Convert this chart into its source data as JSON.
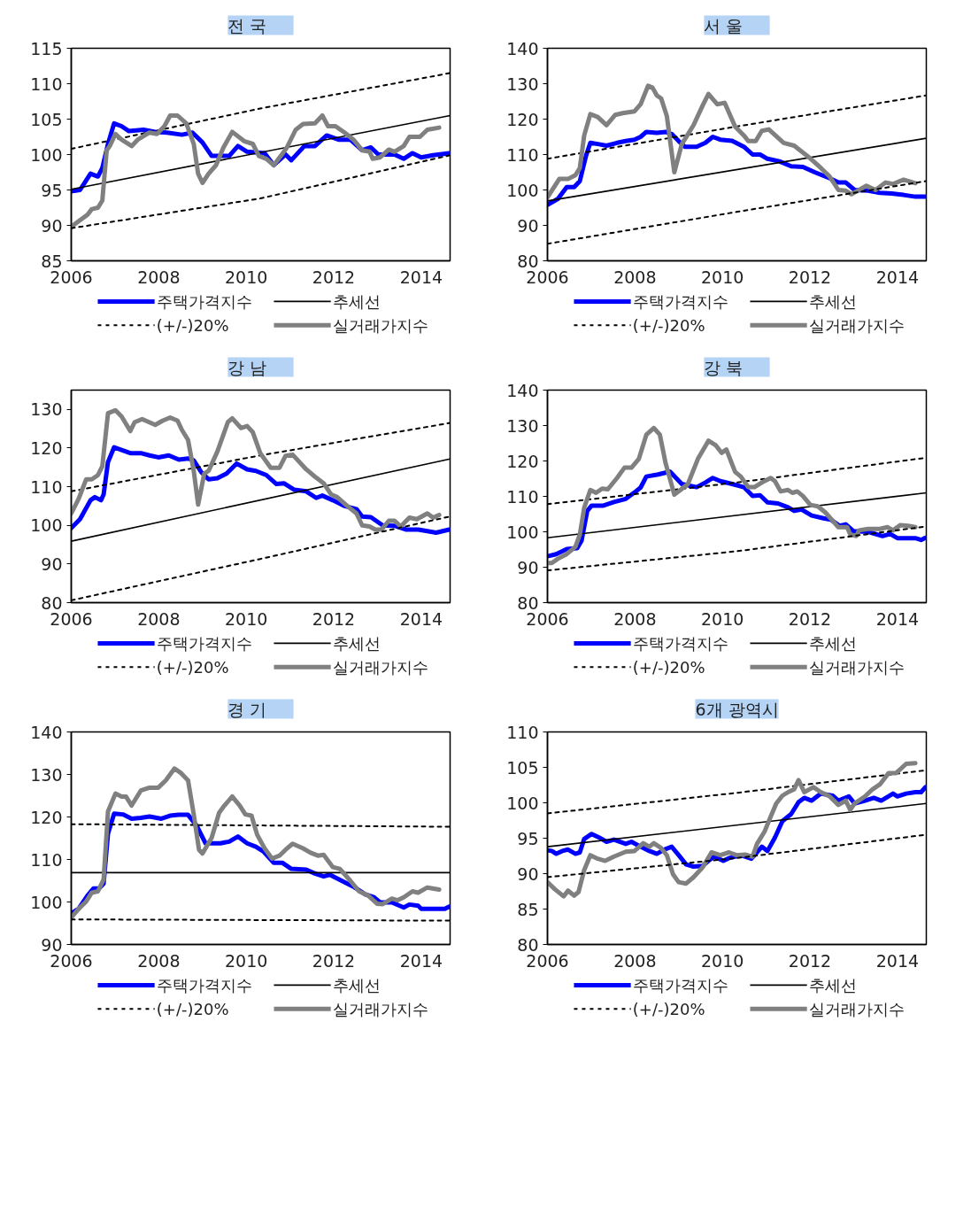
{
  "chart_data": [
    {
      "type": "line",
      "title": "전      국",
      "legend": "bottom",
      "xlim": [
        2006,
        2014.66
      ],
      "xticks": [
        2006,
        2008,
        2010,
        2012,
        2014
      ],
      "ylim": [
        85,
        115
      ],
      "yticks": [
        85,
        90,
        95,
        100,
        105,
        110,
        115
      ],
      "series": [
        {
          "name": "주택가격지수",
          "color": "#0000ff",
          "line_style": "solid",
          "x": [
            2006.0,
            2006.2,
            2006.44,
            2006.61,
            2006.71,
            2006.84,
            2006.98,
            2007.15,
            2007.32,
            2007.65,
            2007.92,
            2008.19,
            2008.53,
            2008.77,
            2009.0,
            2009.21,
            2009.48,
            2009.61,
            2009.81,
            2010.02,
            2010.42,
            2010.63,
            2010.9,
            2011.03,
            2011.33,
            2011.57,
            2011.84,
            2012.11,
            2012.38,
            2012.65,
            2012.85,
            2013.02,
            2013.39,
            2013.6,
            2013.8,
            2014.0,
            2014.27,
            2014.64
          ],
          "values": [
            94.8,
            95.0,
            97.3,
            96.9,
            98.1,
            101.5,
            104.4,
            104.0,
            103.3,
            103.5,
            103.2,
            103.1,
            102.8,
            103.1,
            101.7,
            99.8,
            99.8,
            99.8,
            101.2,
            100.4,
            100.2,
            98.5,
            100.0,
            99.2,
            101.2,
            101.2,
            102.7,
            102.1,
            102.1,
            100.6,
            101.0,
            100.0,
            100.0,
            99.4,
            100.2,
            99.6,
            99.9,
            100.2
          ]
        },
        {
          "name": "추세선",
          "color": "#000000",
          "line_style": "solid",
          "x": [
            2006.0,
            2014.66
          ],
          "values": [
            95.1,
            105.5
          ]
        },
        {
          "name": "(+/-)20%",
          "color": "#000000",
          "line_style": "dashed",
          "x": [
            2006.0,
            2010.32,
            2014.66
          ],
          "values": [
            100.8,
            106.5,
            111.5
          ]
        },
        {
          "name": "실거래가지수",
          "color": "#808080",
          "line_style": "solid",
          "x": [
            2006.0,
            2006.17,
            2006.37,
            2006.47,
            2006.61,
            2006.71,
            2006.81,
            2006.88,
            2007.01,
            2007.15,
            2007.38,
            2007.52,
            2007.79,
            2007.96,
            2008.13,
            2008.26,
            2008.43,
            2008.63,
            2008.8,
            2008.9,
            2009.0,
            2009.14,
            2009.31,
            2009.48,
            2009.68,
            2009.95,
            2010.15,
            2010.29,
            2010.46,
            2010.63,
            2010.79,
            2010.93,
            2011.13,
            2011.3,
            2011.57,
            2011.74,
            2011.87,
            2012.04,
            2012.25,
            2012.45,
            2012.65,
            2012.82,
            2012.89,
            2013.06,
            2013.26,
            2013.39,
            2013.6,
            2013.73,
            2013.97,
            2014.14,
            2014.41
          ],
          "values": [
            89.8,
            90.6,
            91.5,
            92.3,
            92.5,
            93.5,
            100.6,
            101.2,
            102.9,
            102.1,
            101.2,
            102.1,
            103.1,
            102.9,
            104.0,
            105.5,
            105.5,
            104.4,
            101.5,
            97.3,
            96.0,
            97.3,
            98.5,
            101.0,
            103.2,
            101.9,
            101.5,
            99.8,
            99.4,
            98.5,
            99.8,
            101.0,
            103.5,
            104.3,
            104.4,
            105.5,
            104.0,
            104.0,
            103.1,
            102.1,
            100.6,
            100.4,
            99.4,
            99.6,
            100.7,
            100.4,
            101.2,
            102.5,
            102.5,
            103.5,
            103.8
          ]
        },
        {
          "color": "#000000",
          "line_style": "dashed",
          "x": [
            2006.0,
            2010.32,
            2014.66
          ],
          "values": [
            89.6,
            93.8,
            99.9
          ]
        }
      ]
    },
    {
      "type": "line",
      "title": "서      울",
      "legend": "bottom",
      "xlim": [
        2006,
        2014.66
      ],
      "xticks": [
        2006,
        2008,
        2010,
        2012,
        2014
      ],
      "ylim": [
        80,
        140
      ],
      "yticks": [
        80,
        90,
        100,
        110,
        120,
        130,
        140
      ],
      "series": [
        {
          "name": "주택가격지수",
          "color": "#0000ff",
          "line_style": "solid",
          "x": [
            2006.0,
            2006.24,
            2006.44,
            2006.61,
            2006.74,
            2006.88,
            2006.98,
            2007.18,
            2007.35,
            2007.59,
            2007.79,
            2007.99,
            2008.13,
            2008.26,
            2008.5,
            2008.7,
            2008.84,
            2009.0,
            2009.14,
            2009.41,
            2009.61,
            2009.78,
            2009.95,
            2010.22,
            2010.49,
            2010.69,
            2010.86,
            2011.03,
            2011.3,
            2011.57,
            2011.84,
            2012.11,
            2012.45,
            2012.65,
            2012.82,
            2013.02,
            2013.33,
            2013.6,
            2013.87,
            2014.14,
            2014.41,
            2014.64
          ],
          "values": [
            95.8,
            97.5,
            100.8,
            100.8,
            102.5,
            109.6,
            113.3,
            112.9,
            112.5,
            113.3,
            113.8,
            114.2,
            115.0,
            116.4,
            116.1,
            116.4,
            115.8,
            113.8,
            112.2,
            112.2,
            113.3,
            115.0,
            114.2,
            113.9,
            112.2,
            110.0,
            110.0,
            108.8,
            108.1,
            106.7,
            106.5,
            105.0,
            103.3,
            102.1,
            102.1,
            100.0,
            99.8,
            99.2,
            99.0,
            98.6,
            98.1,
            98.1
          ]
        },
        {
          "name": "추세선",
          "color": "#000000",
          "line_style": "solid",
          "x": [
            2006.0,
            2014.66
          ],
          "values": [
            96.9,
            114.6
          ]
        },
        {
          "name": "(+/-)20%",
          "color": "#000000",
          "line_style": "dashed",
          "x": [
            2006.0,
            2010.32,
            2014.66
          ],
          "values": [
            108.8,
            117.9,
            126.7
          ]
        },
        {
          "name": "실거래가지수",
          "color": "#808080",
          "line_style": "solid",
          "x": [
            2006.0,
            2006.27,
            2006.47,
            2006.64,
            2006.74,
            2006.84,
            2006.98,
            2007.15,
            2007.35,
            2007.55,
            2007.72,
            2007.99,
            2008.13,
            2008.3,
            2008.4,
            2008.5,
            2008.6,
            2008.73,
            2008.9,
            2009.07,
            2009.34,
            2009.55,
            2009.68,
            2009.88,
            2010.05,
            2010.29,
            2010.49,
            2010.59,
            2010.76,
            2010.9,
            2011.06,
            2011.4,
            2011.64,
            2011.98,
            2012.25,
            2012.45,
            2012.65,
            2012.82,
            2012.95,
            2013.29,
            2013.5,
            2013.73,
            2013.9,
            2014.14,
            2014.41
          ],
          "values": [
            97.9,
            103.1,
            103.1,
            104.2,
            106.2,
            115.4,
            121.4,
            120.6,
            118.3,
            121.2,
            121.7,
            122.2,
            124.2,
            129.4,
            128.9,
            126.7,
            125.8,
            120.8,
            105.0,
            112.9,
            118.3,
            123.9,
            127.1,
            124.2,
            124.6,
            117.9,
            115.4,
            113.8,
            113.8,
            116.7,
            117.1,
            113.3,
            112.5,
            109.2,
            106.2,
            103.8,
            100.0,
            99.8,
            98.8,
            101.2,
            100.0,
            102.1,
            101.7,
            102.9,
            101.9
          ]
        },
        {
          "color": "#000000",
          "line_style": "dashed",
          "x": [
            2006.0,
            2010.32,
            2014.66
          ],
          "values": [
            84.8,
            93.8,
            102.5
          ]
        }
      ]
    },
    {
      "type": "line",
      "title": "강      남",
      "legend": "bottom",
      "xlim": [
        2006,
        2014.66
      ],
      "xticks": [
        2006,
        2008,
        2010,
        2012,
        2014
      ],
      "ylim": [
        80,
        135
      ],
      "yticks": [
        80,
        90,
        100,
        110,
        120,
        130
      ],
      "series": [
        {
          "name": "주택가격지수",
          "color": "#0000ff",
          "line_style": "solid",
          "x": [
            2006.0,
            2006.2,
            2006.44,
            2006.54,
            2006.68,
            2006.74,
            2006.84,
            2006.98,
            2007.15,
            2007.35,
            2007.59,
            2007.79,
            2007.99,
            2008.23,
            2008.46,
            2008.67,
            2008.8,
            2008.97,
            2009.14,
            2009.34,
            2009.55,
            2009.78,
            2010.02,
            2010.22,
            2010.46,
            2010.69,
            2010.86,
            2011.1,
            2011.37,
            2011.6,
            2011.74,
            2011.98,
            2012.25,
            2012.52,
            2012.65,
            2012.85,
            2013.12,
            2013.39,
            2013.66,
            2013.93,
            2014.14,
            2014.34,
            2014.64
          ],
          "values": [
            99.3,
            101.6,
            106.5,
            107.3,
            106.5,
            108.0,
            116.4,
            120.2,
            119.5,
            118.7,
            118.7,
            118.1,
            117.6,
            118.1,
            117.0,
            117.3,
            116.8,
            113.8,
            111.9,
            112.2,
            113.4,
            116.0,
            114.5,
            114.1,
            113.0,
            110.7,
            110.9,
            109.2,
            108.8,
            107.1,
            107.7,
            106.5,
            105.0,
            104.2,
            102.3,
            102.1,
            100.0,
            99.9,
            98.9,
            98.9,
            98.5,
            98.1,
            98.9
          ]
        },
        {
          "name": "추세선",
          "color": "#000000",
          "line_style": "solid",
          "x": [
            2006.0,
            2014.66
          ],
          "values": [
            95.9,
            117.2
          ]
        },
        {
          "name": "(+/-)20%",
          "color": "#000000",
          "line_style": "dashed",
          "x": [
            2006.0,
            2010.32,
            2014.66
          ],
          "values": [
            108.8,
            118.1,
            126.5
          ]
        },
        {
          "name": "실거래가지수",
          "color": "#808080",
          "line_style": "solid",
          "x": [
            2006.0,
            2006.17,
            2006.34,
            2006.47,
            2006.61,
            2006.71,
            2006.84,
            2007.01,
            2007.15,
            2007.35,
            2007.45,
            2007.62,
            2007.92,
            2008.09,
            2008.26,
            2008.43,
            2008.53,
            2008.67,
            2008.8,
            2008.9,
            2009.04,
            2009.14,
            2009.34,
            2009.58,
            2009.68,
            2009.88,
            2010.02,
            2010.15,
            2010.32,
            2010.56,
            2010.76,
            2010.9,
            2011.06,
            2011.37,
            2011.57,
            2011.77,
            2011.94,
            2012.08,
            2012.31,
            2012.52,
            2012.65,
            2012.82,
            2012.95,
            2013.09,
            2013.26,
            2013.39,
            2013.53,
            2013.73,
            2013.9,
            2014.14,
            2014.27,
            2014.41
          ],
          "values": [
            103.1,
            106.9,
            111.9,
            111.9,
            113.0,
            115.3,
            129.0,
            129.8,
            128.2,
            124.4,
            126.7,
            127.5,
            126.0,
            127.1,
            127.9,
            127.1,
            124.7,
            122.1,
            114.1,
            105.4,
            113.4,
            114.1,
            119.1,
            126.7,
            127.7,
            125.2,
            125.7,
            124.1,
            118.7,
            114.9,
            114.9,
            118.0,
            118.3,
            114.5,
            112.6,
            110.9,
            108.0,
            107.3,
            105.0,
            103.1,
            100.0,
            99.7,
            98.9,
            98.9,
            101.2,
            101.2,
            99.7,
            102.0,
            101.6,
            103.1,
            102.0,
            102.7
          ]
        },
        {
          "color": "#000000",
          "line_style": "dashed",
          "x": [
            2006.0,
            2010.32,
            2014.66
          ],
          "values": [
            80.6,
            91.3,
            102.3
          ]
        }
      ]
    },
    {
      "type": "line",
      "title": "강      북",
      "legend": "bottom",
      "xlim": [
        2006,
        2014.66
      ],
      "xticks": [
        2006,
        2008,
        2010,
        2012,
        2014
      ],
      "ylim": [
        80,
        140
      ],
      "yticks": [
        80,
        90,
        100,
        110,
        120,
        130,
        140
      ],
      "series": [
        {
          "name": "주택가격지수",
          "color": "#0000ff",
          "line_style": "solid",
          "x": [
            2006.0,
            2006.2,
            2006.44,
            2006.68,
            2006.78,
            2006.91,
            2007.01,
            2007.28,
            2007.52,
            2007.79,
            2007.99,
            2008.13,
            2008.26,
            2008.53,
            2008.8,
            2009.07,
            2009.41,
            2009.61,
            2009.78,
            2009.95,
            2010.22,
            2010.49,
            2010.69,
            2010.86,
            2011.03,
            2011.27,
            2011.5,
            2011.64,
            2011.81,
            2012.04,
            2012.31,
            2012.48,
            2012.68,
            2012.82,
            2012.99,
            2013.33,
            2013.66,
            2013.83,
            2014.0,
            2014.41,
            2014.54,
            2014.64
          ],
          "values": [
            93.1,
            93.7,
            95.1,
            95.4,
            97.5,
            105.9,
            107.4,
            107.4,
            108.4,
            109.3,
            111.1,
            112.5,
            115.6,
            116.2,
            117.0,
            113.5,
            112.6,
            113.9,
            115.2,
            114.3,
            113.5,
            112.6,
            110.1,
            110.3,
            108.3,
            108.0,
            106.9,
            105.9,
            106.3,
            104.6,
            103.8,
            103.4,
            101.7,
            102.1,
            100.2,
            100.0,
            98.8,
            99.4,
            98.2,
            98.2,
            97.7,
            98.3
          ]
        },
        {
          "name": "추세선",
          "color": "#000000",
          "line_style": "solid",
          "x": [
            2006.0,
            2014.66
          ],
          "values": [
            98.3,
            111.0
          ]
        },
        {
          "name": "(+/-)20%",
          "color": "#000000",
          "line_style": "dashed",
          "x": [
            2006.0,
            2010.32,
            2014.66
          ],
          "values": [
            107.8,
            113.9,
            120.9
          ]
        },
        {
          "name": "실거래가지수",
          "color": "#808080",
          "line_style": "solid",
          "x": [
            2006.0,
            2006.1,
            2006.24,
            2006.44,
            2006.64,
            2006.74,
            2006.84,
            2006.98,
            2007.11,
            2007.25,
            2007.38,
            2007.59,
            2007.76,
            2007.92,
            2008.09,
            2008.26,
            2008.43,
            2008.57,
            2008.7,
            2008.9,
            2009.04,
            2009.21,
            2009.44,
            2009.68,
            2009.85,
            2009.98,
            2010.09,
            2010.29,
            2010.42,
            2010.59,
            2010.73,
            2010.9,
            2011.1,
            2011.2,
            2011.33,
            2011.5,
            2011.6,
            2011.71,
            2011.84,
            2012.01,
            2012.18,
            2012.35,
            2012.65,
            2012.85,
            2012.92,
            2013.06,
            2013.12,
            2013.33,
            2013.6,
            2013.77,
            2013.9,
            2014.07,
            2014.24,
            2014.41
          ],
          "values": [
            91.2,
            91.2,
            92.4,
            93.7,
            95.8,
            99.2,
            106.8,
            111.8,
            111.0,
            112.2,
            112.0,
            115.2,
            118.1,
            118.1,
            120.6,
            127.4,
            129.3,
            127.4,
            119.4,
            110.5,
            111.8,
            113.5,
            120.6,
            125.7,
            124.4,
            122.3,
            123.2,
            116.9,
            115.6,
            112.6,
            112.6,
            113.9,
            115.2,
            114.3,
            111.4,
            111.8,
            111.0,
            111.4,
            110.1,
            107.6,
            107.2,
            105.5,
            101.3,
            101.3,
            99.3,
            98.8,
            100.4,
            100.8,
            100.8,
            101.3,
            100.4,
            101.9,
            101.7,
            101.3
          ]
        },
        {
          "color": "#000000",
          "line_style": "dashed",
          "x": [
            2006.0,
            2010.32,
            2014.66
          ],
          "values": [
            89.1,
            94.5,
            101.5
          ]
        }
      ]
    },
    {
      "type": "line",
      "title": "경      기",
      "legend": "bottom",
      "xlim": [
        2006,
        2014.66
      ],
      "xticks": [
        2006,
        2008,
        2010,
        2012,
        2014
      ],
      "ylim": [
        90,
        140
      ],
      "yticks": [
        90,
        100,
        110,
        120,
        130,
        140
      ],
      "series": [
        {
          "name": "주택가격지수",
          "color": "#0000ff",
          "line_style": "solid",
          "x": [
            2006.0,
            2006.17,
            2006.37,
            2006.51,
            2006.64,
            2006.74,
            2006.84,
            2006.98,
            2007.18,
            2007.38,
            2007.59,
            2007.79,
            2008.06,
            2008.26,
            2008.46,
            2008.67,
            2008.87,
            2009.07,
            2009.41,
            2009.61,
            2009.81,
            2010.02,
            2010.22,
            2010.39,
            2010.63,
            2010.83,
            2011.03,
            2011.37,
            2011.57,
            2011.77,
            2011.91,
            2012.18,
            2012.45,
            2012.72,
            2012.92,
            2013.06,
            2013.33,
            2013.6,
            2013.73,
            2013.93,
            2014.0,
            2014.54,
            2014.64
          ],
          "values": [
            97.3,
            98.4,
            101.5,
            103.2,
            103.2,
            104.3,
            116.1,
            120.8,
            120.6,
            119.6,
            119.8,
            120.1,
            119.6,
            120.3,
            120.5,
            120.5,
            117.9,
            113.8,
            113.8,
            114.2,
            115.4,
            113.8,
            113.0,
            111.9,
            109.2,
            109.2,
            107.8,
            107.6,
            106.7,
            106.0,
            106.4,
            105.0,
            103.6,
            101.8,
            101.1,
            99.9,
            99.9,
            98.7,
            99.4,
            99.1,
            98.4,
            98.4,
            98.9
          ]
        },
        {
          "name": "추세선",
          "color": "#000000",
          "line_style": "solid",
          "x": [
            2006.0,
            2014.66
          ],
          "values": [
            106.9,
            106.9
          ]
        },
        {
          "name": "(+/-)20%",
          "color": "#000000",
          "line_style": "dashed",
          "x": [
            2006.0,
            2014.66
          ],
          "values": [
            118.3,
            117.7
          ]
        },
        {
          "name": "실거래가지수",
          "color": "#808080",
          "line_style": "solid",
          "x": [
            2006.0,
            2006.17,
            2006.34,
            2006.47,
            2006.61,
            2006.74,
            2006.84,
            2007.01,
            2007.15,
            2007.25,
            2007.38,
            2007.59,
            2007.79,
            2007.99,
            2008.16,
            2008.36,
            2008.5,
            2008.67,
            2008.8,
            2008.92,
            2009.0,
            2009.21,
            2009.38,
            2009.48,
            2009.68,
            2009.85,
            2009.98,
            2010.12,
            2010.25,
            2010.42,
            2010.59,
            2010.76,
            2010.9,
            2011.06,
            2011.3,
            2011.47,
            2011.64,
            2011.77,
            2011.98,
            2012.14,
            2012.38,
            2012.58,
            2012.79,
            2012.99,
            2013.12,
            2013.33,
            2013.46,
            2013.6,
            2013.8,
            2013.93,
            2014.14,
            2014.41
          ],
          "values": [
            96.3,
            98.4,
            100.1,
            102.2,
            102.5,
            105.3,
            121.3,
            125.5,
            124.8,
            124.8,
            122.7,
            126.2,
            126.9,
            126.9,
            128.6,
            131.4,
            130.4,
            128.6,
            120.6,
            112.3,
            111.4,
            115.1,
            121.0,
            122.4,
            124.8,
            122.7,
            120.6,
            120.3,
            115.8,
            112.6,
            110.2,
            110.9,
            112.3,
            113.7,
            112.6,
            111.6,
            110.9,
            111.1,
            108.2,
            107.8,
            105.0,
            102.5,
            101.5,
            99.6,
            99.5,
            100.8,
            100.4,
            101.1,
            102.5,
            102.2,
            103.4,
            102.9
          ]
        },
        {
          "color": "#000000",
          "line_style": "dashed",
          "x": [
            2006.0,
            2014.66
          ],
          "values": [
            95.9,
            95.6
          ]
        }
      ]
    },
    {
      "type": "line",
      "title": "6개 광역시",
      "legend": "bottom",
      "xlim": [
        2006,
        2014.66
      ],
      "xticks": [
        2006,
        2008,
        2010,
        2012,
        2014
      ],
      "ylim": [
        80,
        110
      ],
      "yticks": [
        80,
        85,
        90,
        95,
        100,
        105,
        110
      ],
      "series": [
        {
          "name": "주택가격지수",
          "color": "#0000ff",
          "line_style": "solid",
          "x": [
            2006.0,
            2006.1,
            2006.2,
            2006.34,
            2006.47,
            2006.64,
            2006.74,
            2006.84,
            2007.01,
            2007.18,
            2007.35,
            2007.52,
            2007.79,
            2007.92,
            2008.13,
            2008.33,
            2008.5,
            2008.67,
            2008.84,
            2009.0,
            2009.17,
            2009.34,
            2009.55,
            2009.68,
            2009.81,
            2010.02,
            2010.15,
            2010.42,
            2010.66,
            2010.79,
            2010.9,
            2011.03,
            2011.2,
            2011.37,
            2011.57,
            2011.74,
            2011.87,
            2012.04,
            2012.25,
            2012.52,
            2012.65,
            2012.89,
            2013.02,
            2013.26,
            2013.46,
            2013.63,
            2013.9,
            2014.0,
            2014.2,
            2014.41,
            2014.54,
            2014.64
          ],
          "values": [
            93.3,
            93.2,
            92.8,
            93.2,
            93.4,
            92.8,
            93.0,
            94.9,
            95.6,
            95.1,
            94.5,
            94.8,
            94.2,
            94.5,
            93.8,
            93.2,
            92.8,
            93.4,
            93.8,
            92.6,
            91.3,
            91.0,
            91.1,
            91.8,
            92.4,
            91.8,
            92.2,
            92.6,
            92.1,
            93.0,
            93.8,
            93.2,
            95.1,
            97.4,
            98.4,
            100.1,
            100.7,
            100.3,
            101.3,
            101.0,
            100.3,
            100.9,
            99.9,
            100.3,
            100.7,
            100.3,
            101.3,
            100.9,
            101.3,
            101.5,
            101.5,
            102.2
          ]
        },
        {
          "name": "추세선",
          "color": "#000000",
          "line_style": "solid",
          "x": [
            2006.0,
            2014.66
          ],
          "values": [
            93.8,
            99.9
          ]
        },
        {
          "name": "(+/-)20%",
          "color": "#000000",
          "line_style": "dashed",
          "x": [
            2006.0,
            2010.32,
            2014.66
          ],
          "values": [
            98.5,
            101.4,
            104.6
          ]
        },
        {
          "name": "실거래가지수",
          "color": "#808080",
          "line_style": "solid",
          "x": [
            2006.0,
            2006.17,
            2006.37,
            2006.47,
            2006.61,
            2006.71,
            2006.84,
            2006.98,
            2007.15,
            2007.32,
            2007.52,
            2007.79,
            2007.99,
            2008.19,
            2008.33,
            2008.43,
            2008.6,
            2008.73,
            2008.87,
            2009.0,
            2009.17,
            2009.34,
            2009.55,
            2009.75,
            2009.95,
            2010.15,
            2010.32,
            2010.52,
            2010.69,
            2010.79,
            2010.96,
            2011.1,
            2011.23,
            2011.37,
            2011.5,
            2011.64,
            2011.74,
            2011.87,
            2012.08,
            2012.25,
            2012.45,
            2012.65,
            2012.82,
            2012.92,
            2013.02,
            2013.26,
            2013.43,
            2013.6,
            2013.8,
            2013.97,
            2014.2,
            2014.41
          ],
          "values": [
            88.8,
            87.8,
            86.8,
            87.6,
            86.9,
            87.4,
            90.5,
            92.6,
            92.1,
            91.8,
            92.4,
            93.1,
            93.2,
            94.3,
            93.8,
            94.3,
            93.6,
            92.6,
            89.9,
            88.8,
            88.6,
            89.5,
            90.9,
            93.0,
            92.6,
            93.0,
            92.6,
            92.7,
            92.4,
            94.2,
            95.9,
            98.0,
            99.9,
            101.0,
            101.5,
            101.9,
            103.2,
            101.5,
            102.2,
            101.5,
            100.9,
            99.7,
            100.3,
            99.0,
            99.9,
            100.9,
            101.9,
            102.6,
            104.2,
            104.2,
            105.5,
            105.6
          ]
        },
        {
          "color": "#000000",
          "line_style": "dashed",
          "x": [
            2006.0,
            2010.32,
            2014.66
          ],
          "values": [
            89.5,
            92.2,
            95.5
          ]
        }
      ]
    }
  ]
}
